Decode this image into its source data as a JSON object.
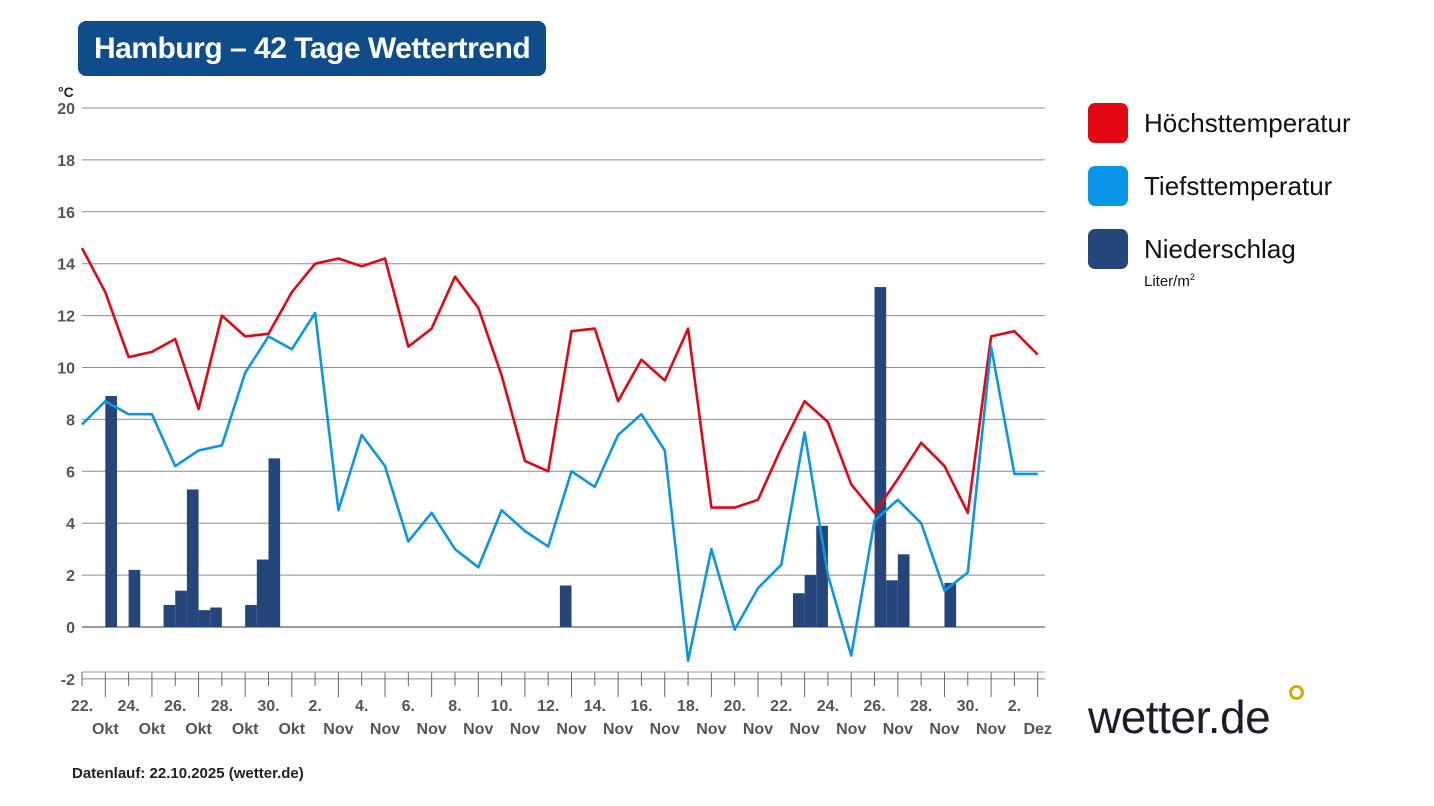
{
  "title": "Hamburg – 42 Tage Wettertrend",
  "footer": "Datenlauf: 22.10.2025 (wetter.de)",
  "logo": "wetter.de",
  "legend": [
    {
      "label": "Höchsttemperatur",
      "color": "#e30613"
    },
    {
      "label": "Tiefsttemperatur",
      "color": "#0a96e6"
    },
    {
      "label": "Niederschlag",
      "sublabel": "Liter/m",
      "sublabel_sup": "2",
      "color": "#25467a"
    }
  ],
  "chart_data": {
    "type": "line+bar",
    "ylabel": "°C",
    "ylim": [
      -2,
      20
    ],
    "yticks": [
      -2,
      0,
      2,
      4,
      6,
      8,
      10,
      12,
      14,
      16,
      18,
      20
    ],
    "grid": true,
    "legend_position": "right",
    "x_start": "2025-10-22",
    "x_end": "2025-12-02",
    "xtick_days": [
      "22.",
      "24.",
      "26.",
      "28.",
      "30.",
      "2.",
      "4.",
      "6.",
      "8.",
      "10.",
      "12.",
      "14.",
      "16.",
      "18.",
      "20.",
      "22.",
      "24.",
      "26.",
      "28.",
      "30.",
      "2."
    ],
    "xtick_months": [
      "Okt",
      "Okt",
      "Okt",
      "Okt",
      "Okt",
      "Nov",
      "Nov",
      "Nov",
      "Nov",
      "Nov",
      "Nov",
      "Nov",
      "Nov",
      "Nov",
      "Nov",
      "Nov",
      "Nov",
      "Nov",
      "Nov",
      "Nov",
      "Dez"
    ],
    "series": [
      {
        "name": "Höchsttemperatur",
        "type": "line",
        "color": "#e30613",
        "values": [
          14.6,
          12.9,
          10.4,
          10.6,
          11.1,
          8.4,
          12.0,
          11.2,
          11.3,
          12.9,
          14.0,
          14.2,
          13.9,
          14.2,
          10.8,
          11.5,
          13.5,
          12.3,
          9.7,
          6.4,
          6.0,
          11.4,
          11.5,
          8.7,
          10.3,
          9.5,
          11.5,
          4.6,
          4.6,
          4.9,
          6.9,
          8.7,
          7.9,
          5.5,
          4.4,
          5.7,
          7.1,
          6.2,
          4.4,
          11.2,
          11.4,
          10.5
        ]
      },
      {
        "name": "Tiefsttemperatur",
        "type": "line",
        "color": "#0a96e6",
        "values": [
          7.8,
          8.7,
          8.2,
          8.2,
          6.2,
          6.8,
          7.0,
          9.8,
          11.2,
          10.7,
          12.1,
          4.5,
          7.4,
          6.2,
          3.3,
          4.4,
          3.0,
          2.3,
          4.5,
          3.7,
          3.1,
          6.0,
          5.4,
          7.4,
          8.2,
          6.8,
          -1.3,
          3.0,
          -0.1,
          1.5,
          2.4,
          7.5,
          2.0,
          -1.1,
          4.1,
          4.9,
          4.0,
          1.4,
          2.1,
          10.8,
          5.9,
          5.9
        ]
      },
      {
        "name": "Niederschlag",
        "type": "bar",
        "color": "#25467a",
        "unit": "Liter/m²",
        "points": [
          {
            "t": "2025-10-23T00:00",
            "value": 8.9
          },
          {
            "t": "2025-10-24T00:00",
            "value": 2.2
          },
          {
            "t": "2025-10-25T12:00",
            "value": 0.85
          },
          {
            "t": "2025-10-26T00:00",
            "value": 1.4
          },
          {
            "t": "2025-10-26T12:00",
            "value": 5.3
          },
          {
            "t": "2025-10-27T00:00",
            "value": 0.65
          },
          {
            "t": "2025-10-27T12:00",
            "value": 0.75
          },
          {
            "t": "2025-10-29T00:00",
            "value": 0.85
          },
          {
            "t": "2025-10-29T12:00",
            "value": 2.6
          },
          {
            "t": "2025-10-30T00:00",
            "value": 6.5
          },
          {
            "t": "2025-11-11T12:00",
            "value": 1.6
          },
          {
            "t": "2025-11-21T12:00",
            "value": 1.3
          },
          {
            "t": "2025-11-22T00:00",
            "value": 2.0
          },
          {
            "t": "2025-11-22T12:00",
            "value": 3.9
          },
          {
            "t": "2025-11-25T00:00",
            "value": 13.1
          },
          {
            "t": "2025-11-25T12:00",
            "value": 1.8
          },
          {
            "t": "2025-11-26T00:00",
            "value": 2.8
          },
          {
            "t": "2025-11-28T00:00",
            "value": 1.7
          }
        ]
      }
    ]
  }
}
